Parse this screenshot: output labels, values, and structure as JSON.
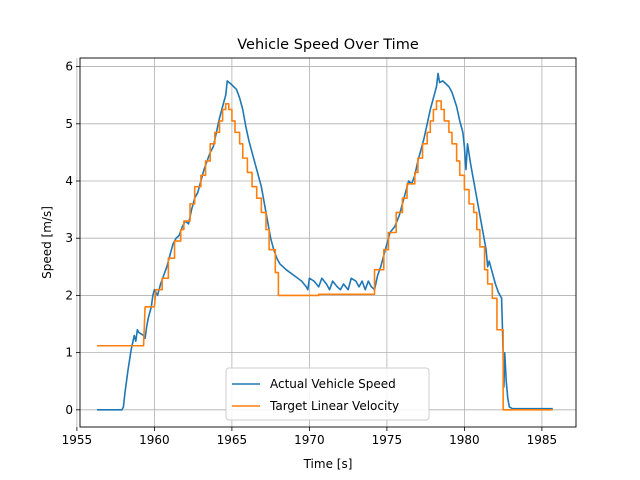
{
  "chart_data": {
    "type": "line",
    "title": "Vehicle Speed Over Time",
    "xlabel": "Time [s]",
    "ylabel": "Speed [m/s]",
    "xlim": [
      1955.2,
      1987.2
    ],
    "ylim": [
      -0.3,
      6.15
    ],
    "xticks": [
      1955,
      1960,
      1965,
      1970,
      1975,
      1980,
      1985
    ],
    "yticks": [
      0,
      1,
      2,
      3,
      4,
      5,
      6
    ],
    "grid": true,
    "legend_position": "lower-center",
    "series": [
      {
        "name": "Actual Vehicle Speed",
        "color": "#1f77b4",
        "points": [
          [
            1956.3,
            0
          ],
          [
            1957.9,
            0
          ],
          [
            1958.0,
            0.05
          ],
          [
            1958.1,
            0.3
          ],
          [
            1958.3,
            0.7
          ],
          [
            1958.5,
            1.05
          ],
          [
            1958.7,
            1.3
          ],
          [
            1958.8,
            1.2
          ],
          [
            1958.9,
            1.4
          ],
          [
            1959.0,
            1.35
          ],
          [
            1959.3,
            1.3
          ],
          [
            1959.4,
            1.25
          ],
          [
            1959.5,
            1.45
          ],
          [
            1959.6,
            1.6
          ],
          [
            1959.8,
            1.8
          ],
          [
            1959.9,
            2.0
          ],
          [
            1960.0,
            2.1
          ],
          [
            1960.2,
            2.0
          ],
          [
            1960.4,
            2.2
          ],
          [
            1960.6,
            2.35
          ],
          [
            1960.8,
            2.5
          ],
          [
            1961.0,
            2.7
          ],
          [
            1961.2,
            2.9
          ],
          [
            1961.4,
            3.0
          ],
          [
            1961.6,
            3.05
          ],
          [
            1961.8,
            3.2
          ],
          [
            1962.0,
            3.3
          ],
          [
            1962.2,
            3.25
          ],
          [
            1962.4,
            3.5
          ],
          [
            1962.6,
            3.7
          ],
          [
            1962.8,
            3.8
          ],
          [
            1963.0,
            4.0
          ],
          [
            1963.2,
            4.2
          ],
          [
            1963.4,
            4.35
          ],
          [
            1963.6,
            4.5
          ],
          [
            1963.8,
            4.6
          ],
          [
            1964.0,
            4.85
          ],
          [
            1964.2,
            5.1
          ],
          [
            1964.4,
            5.3
          ],
          [
            1964.6,
            5.5
          ],
          [
            1964.7,
            5.75
          ],
          [
            1965.0,
            5.68
          ],
          [
            1965.3,
            5.6
          ],
          [
            1965.5,
            5.45
          ],
          [
            1965.7,
            5.25
          ],
          [
            1965.9,
            4.95
          ],
          [
            1966.1,
            4.7
          ],
          [
            1966.3,
            4.5
          ],
          [
            1966.5,
            4.3
          ],
          [
            1966.7,
            4.1
          ],
          [
            1966.9,
            3.9
          ],
          [
            1967.1,
            3.6
          ],
          [
            1967.3,
            3.3
          ],
          [
            1967.5,
            3.0
          ],
          [
            1967.7,
            2.8
          ],
          [
            1967.9,
            2.65
          ],
          [
            1968.1,
            2.55
          ],
          [
            1968.5,
            2.45
          ],
          [
            1969.0,
            2.35
          ],
          [
            1969.5,
            2.25
          ],
          [
            1969.8,
            2.15
          ],
          [
            1969.9,
            2.1
          ],
          [
            1970.0,
            2.3
          ],
          [
            1970.3,
            2.25
          ],
          [
            1970.6,
            2.15
          ],
          [
            1970.8,
            2.3
          ],
          [
            1971.1,
            2.2
          ],
          [
            1971.3,
            2.1
          ],
          [
            1971.5,
            2.25
          ],
          [
            1971.8,
            2.15
          ],
          [
            1972.0,
            2.1
          ],
          [
            1972.2,
            2.2
          ],
          [
            1972.5,
            2.1
          ],
          [
            1972.7,
            2.3
          ],
          [
            1973.0,
            2.25
          ],
          [
            1973.2,
            2.15
          ],
          [
            1973.4,
            2.25
          ],
          [
            1973.6,
            2.1
          ],
          [
            1973.8,
            2.25
          ],
          [
            1974.0,
            2.15
          ],
          [
            1974.2,
            2.1
          ],
          [
            1974.4,
            2.35
          ],
          [
            1974.6,
            2.5
          ],
          [
            1974.8,
            2.7
          ],
          [
            1975.0,
            2.9
          ],
          [
            1975.2,
            3.1
          ],
          [
            1975.5,
            3.2
          ],
          [
            1975.8,
            3.4
          ],
          [
            1976.0,
            3.6
          ],
          [
            1976.2,
            3.8
          ],
          [
            1976.4,
            4.0
          ],
          [
            1976.6,
            3.95
          ],
          [
            1976.8,
            4.1
          ],
          [
            1977.0,
            4.35
          ],
          [
            1977.2,
            4.55
          ],
          [
            1977.4,
            4.75
          ],
          [
            1977.6,
            5.0
          ],
          [
            1977.8,
            5.25
          ],
          [
            1978.0,
            5.45
          ],
          [
            1978.2,
            5.65
          ],
          [
            1978.3,
            5.88
          ],
          [
            1978.4,
            5.72
          ],
          [
            1978.6,
            5.75
          ],
          [
            1978.8,
            5.7
          ],
          [
            1979.0,
            5.65
          ],
          [
            1979.2,
            5.55
          ],
          [
            1979.5,
            5.3
          ],
          [
            1979.7,
            5.05
          ],
          [
            1979.9,
            4.85
          ],
          [
            1980.0,
            4.6
          ],
          [
            1980.1,
            4.2
          ],
          [
            1980.2,
            4.65
          ],
          [
            1980.4,
            4.3
          ],
          [
            1980.6,
            4.0
          ],
          [
            1980.8,
            3.7
          ],
          [
            1981.0,
            3.4
          ],
          [
            1981.2,
            3.1
          ],
          [
            1981.4,
            2.8
          ],
          [
            1981.5,
            2.5
          ],
          [
            1981.6,
            2.6
          ],
          [
            1981.8,
            2.4
          ],
          [
            1982.0,
            2.2
          ],
          [
            1982.2,
            2.05
          ],
          [
            1982.4,
            1.95
          ],
          [
            1982.5,
            1.0
          ],
          [
            1982.55,
            0.4
          ],
          [
            1982.6,
            1.0
          ],
          [
            1982.7,
            0.5
          ],
          [
            1982.8,
            0.2
          ],
          [
            1982.9,
            0.05
          ],
          [
            1983.1,
            0.02
          ],
          [
            1985.7,
            0.02
          ]
        ]
      },
      {
        "name": "Target Linear Velocity",
        "color": "#ff7f0e",
        "points": [
          [
            1956.3,
            1.12
          ],
          [
            1959.3,
            1.12
          ],
          [
            1959.4,
            1.8
          ],
          [
            1960.0,
            1.8
          ],
          [
            1960.1,
            2.1
          ],
          [
            1960.5,
            2.1
          ],
          [
            1960.5,
            2.3
          ],
          [
            1960.9,
            2.3
          ],
          [
            1960.9,
            2.65
          ],
          [
            1961.3,
            2.65
          ],
          [
            1961.3,
            2.95
          ],
          [
            1961.7,
            2.95
          ],
          [
            1961.7,
            3.15
          ],
          [
            1961.9,
            3.15
          ],
          [
            1961.9,
            3.3
          ],
          [
            1962.3,
            3.3
          ],
          [
            1962.3,
            3.6
          ],
          [
            1962.6,
            3.6
          ],
          [
            1962.6,
            3.9
          ],
          [
            1963.0,
            3.9
          ],
          [
            1963.0,
            4.1
          ],
          [
            1963.3,
            4.1
          ],
          [
            1963.3,
            4.35
          ],
          [
            1963.6,
            4.35
          ],
          [
            1963.6,
            4.65
          ],
          [
            1963.9,
            4.65
          ],
          [
            1963.9,
            4.85
          ],
          [
            1964.2,
            4.85
          ],
          [
            1964.2,
            5.05
          ],
          [
            1964.4,
            5.05
          ],
          [
            1964.4,
            5.25
          ],
          [
            1964.6,
            5.25
          ],
          [
            1964.6,
            5.35
          ],
          [
            1964.8,
            5.35
          ],
          [
            1964.8,
            5.25
          ],
          [
            1965.0,
            5.25
          ],
          [
            1965.0,
            5.05
          ],
          [
            1965.2,
            5.05
          ],
          [
            1965.2,
            4.85
          ],
          [
            1965.5,
            4.85
          ],
          [
            1965.5,
            4.65
          ],
          [
            1965.7,
            4.65
          ],
          [
            1965.7,
            4.4
          ],
          [
            1966.0,
            4.4
          ],
          [
            1966.0,
            4.15
          ],
          [
            1966.3,
            4.15
          ],
          [
            1966.3,
            3.9
          ],
          [
            1966.6,
            3.9
          ],
          [
            1966.6,
            3.7
          ],
          [
            1966.9,
            3.7
          ],
          [
            1966.9,
            3.45
          ],
          [
            1967.2,
            3.45
          ],
          [
            1967.2,
            3.15
          ],
          [
            1967.4,
            3.15
          ],
          [
            1967.4,
            2.8
          ],
          [
            1967.8,
            2.8
          ],
          [
            1967.8,
            2.4
          ],
          [
            1968.0,
            2.4
          ],
          [
            1968.0,
            2.0
          ],
          [
            1970.6,
            2.0
          ],
          [
            1970.6,
            2.02
          ],
          [
            1974.2,
            2.02
          ],
          [
            1974.2,
            2.45
          ],
          [
            1974.8,
            2.45
          ],
          [
            1974.8,
            2.8
          ],
          [
            1975.1,
            2.8
          ],
          [
            1975.1,
            3.1
          ],
          [
            1975.6,
            3.1
          ],
          [
            1975.6,
            3.45
          ],
          [
            1976.0,
            3.45
          ],
          [
            1976.0,
            3.7
          ],
          [
            1976.3,
            3.7
          ],
          [
            1976.3,
            3.95
          ],
          [
            1976.8,
            3.95
          ],
          [
            1976.8,
            4.15
          ],
          [
            1977.0,
            4.15
          ],
          [
            1977.0,
            4.4
          ],
          [
            1977.3,
            4.4
          ],
          [
            1977.3,
            4.65
          ],
          [
            1977.6,
            4.65
          ],
          [
            1977.6,
            4.85
          ],
          [
            1977.8,
            4.85
          ],
          [
            1977.8,
            5.05
          ],
          [
            1978.0,
            5.05
          ],
          [
            1978.0,
            5.25
          ],
          [
            1978.2,
            5.25
          ],
          [
            1978.2,
            5.4
          ],
          [
            1978.5,
            5.4
          ],
          [
            1978.5,
            5.25
          ],
          [
            1978.7,
            5.25
          ],
          [
            1978.7,
            5.05
          ],
          [
            1979.0,
            5.05
          ],
          [
            1979.0,
            4.85
          ],
          [
            1979.2,
            4.85
          ],
          [
            1979.2,
            4.65
          ],
          [
            1979.5,
            4.65
          ],
          [
            1979.5,
            4.35
          ],
          [
            1979.7,
            4.35
          ],
          [
            1979.7,
            4.1
          ],
          [
            1980.0,
            4.1
          ],
          [
            1980.0,
            3.85
          ],
          [
            1980.3,
            3.85
          ],
          [
            1980.3,
            3.6
          ],
          [
            1980.6,
            3.6
          ],
          [
            1980.6,
            3.45
          ],
          [
            1980.8,
            3.45
          ],
          [
            1980.8,
            3.15
          ],
          [
            1981.0,
            3.15
          ],
          [
            1981.0,
            2.85
          ],
          [
            1981.3,
            2.85
          ],
          [
            1981.3,
            2.45
          ],
          [
            1981.5,
            2.45
          ],
          [
            1981.5,
            2.2
          ],
          [
            1981.8,
            2.2
          ],
          [
            1981.8,
            1.95
          ],
          [
            1982.1,
            1.95
          ],
          [
            1982.1,
            1.4
          ],
          [
            1982.5,
            1.4
          ],
          [
            1982.5,
            0.0
          ],
          [
            1985.7,
            0.0
          ]
        ]
      }
    ]
  }
}
